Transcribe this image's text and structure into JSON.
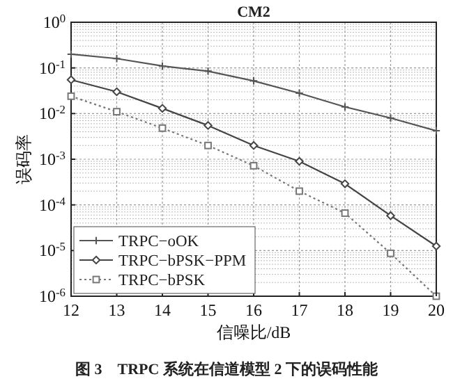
{
  "chart_data": {
    "type": "line",
    "title": "CM2",
    "xlabel": "信噪比/dB",
    "ylabel": "误码率",
    "annotations": [
      "图 3　TRPC 系统在信道模型 2 下的误码性能"
    ],
    "x": [
      12,
      13,
      14,
      15,
      16,
      17,
      18,
      19,
      20
    ],
    "series": [
      {
        "name": "TRPC−oOK",
        "color": "#555555",
        "marker": "cross",
        "line_style": "solid",
        "values": [
          0.2,
          0.16,
          0.11,
          0.085,
          0.052,
          0.028,
          0.014,
          0.008,
          0.0042
        ]
      },
      {
        "name": "TRPC−bPSK−PPM",
        "color": "#444444",
        "marker": "diamond",
        "line_style": "solid",
        "values": [
          0.055,
          0.03,
          0.013,
          0.0055,
          0.002,
          0.0009,
          0.00029,
          5.8e-05,
          1.25e-05
        ]
      },
      {
        "name": "TRPC−bPSK",
        "color": "#777777",
        "marker": "square",
        "line_style": "dotted",
        "values": [
          0.024,
          0.011,
          0.0048,
          0.002,
          0.00072,
          0.0002,
          6.6e-05,
          8.7e-06,
          1e-06
        ]
      }
    ],
    "xlim": [
      12,
      20
    ],
    "xticks": [
      12,
      13,
      14,
      15,
      16,
      17,
      18,
      19,
      20
    ],
    "ylim": [
      1e-06,
      1
    ],
    "yticks": [
      {
        "value": 1e-06,
        "label": "10$^{-6}$"
      },
      {
        "value": 1e-05,
        "label": "10$^{-5}$"
      },
      {
        "value": 0.0001,
        "label": "10$^{-4}$"
      },
      {
        "value": 0.001,
        "label": "10$^{-3}$"
      },
      {
        "value": 0.01,
        "label": "10$^{-2}$"
      },
      {
        "value": 0.1,
        "label": "10$^{-1}$"
      },
      {
        "value": 1,
        "label": "10$^{0}$"
      }
    ],
    "log": "y",
    "grid": true,
    "legend": "bottom left"
  }
}
